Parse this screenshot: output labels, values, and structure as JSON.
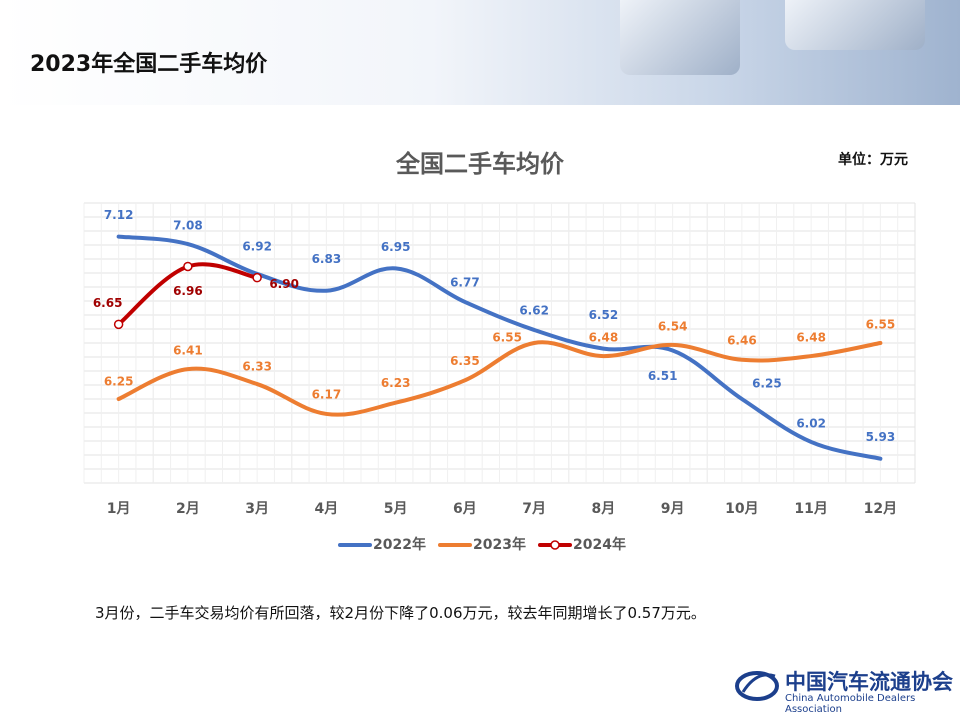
{
  "header": {
    "title": "2023年全国二手车均价"
  },
  "chart_data": {
    "type": "line",
    "title": "全国二手车均价",
    "unit": "单位：万元",
    "categories": [
      "1月",
      "2月",
      "3月",
      "4月",
      "5月",
      "6月",
      "7月",
      "8月",
      "9月",
      "10月",
      "11月",
      "12月"
    ],
    "series": [
      {
        "name": "2022年",
        "color": "#4472c4",
        "values": [
          7.12,
          7.08,
          6.92,
          6.83,
          6.95,
          6.77,
          6.62,
          6.52,
          6.51,
          6.25,
          6.02,
          5.93
        ]
      },
      {
        "name": "2023年",
        "color": "#ed7d31",
        "values": [
          6.25,
          6.41,
          6.33,
          6.17,
          6.23,
          6.35,
          6.55,
          6.48,
          6.54,
          6.46,
          6.48,
          6.55
        ]
      },
      {
        "name": "2024年",
        "color": "#c00000",
        "values": [
          6.65,
          6.96,
          6.9,
          null,
          null,
          null,
          null,
          null,
          null,
          null,
          null,
          null
        ],
        "value_labels": [
          "6.65",
          "6.96",
          "6.90",
          null,
          null,
          null,
          null,
          null,
          null,
          null,
          null,
          null
        ]
      }
    ],
    "ylim": [
      5.8,
      7.3
    ],
    "grid": true
  },
  "note": "3月份，二手车交易均价有所回落，较2月份下降了0.06万元，较去年同期增长了0.57万元。",
  "logo": {
    "name": "中国汽车流通协会",
    "name_en": "China Automobile Dealers Association"
  }
}
